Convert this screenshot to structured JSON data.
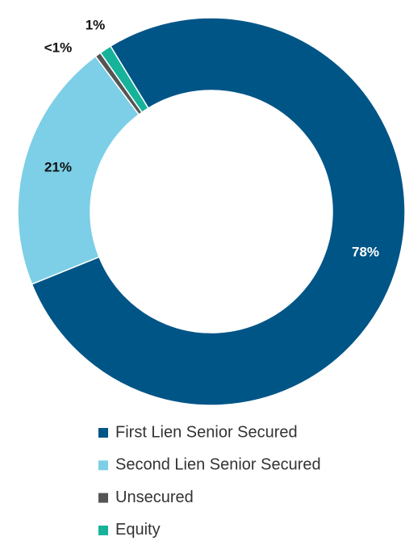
{
  "chart_data": {
    "type": "pie",
    "categories": [
      "First Lien Senior Secured",
      "Second Lien Senior Secured",
      "Unsecured",
      "Equity"
    ],
    "values": [
      78,
      21,
      0.5,
      1
    ],
    "value_labels": [
      "78%",
      "21%",
      "<1%",
      "1%"
    ],
    "colors": [
      "#005587",
      "#7ccfe6",
      "#555555",
      "#16b39a"
    ],
    "legend": "bottom"
  }
}
